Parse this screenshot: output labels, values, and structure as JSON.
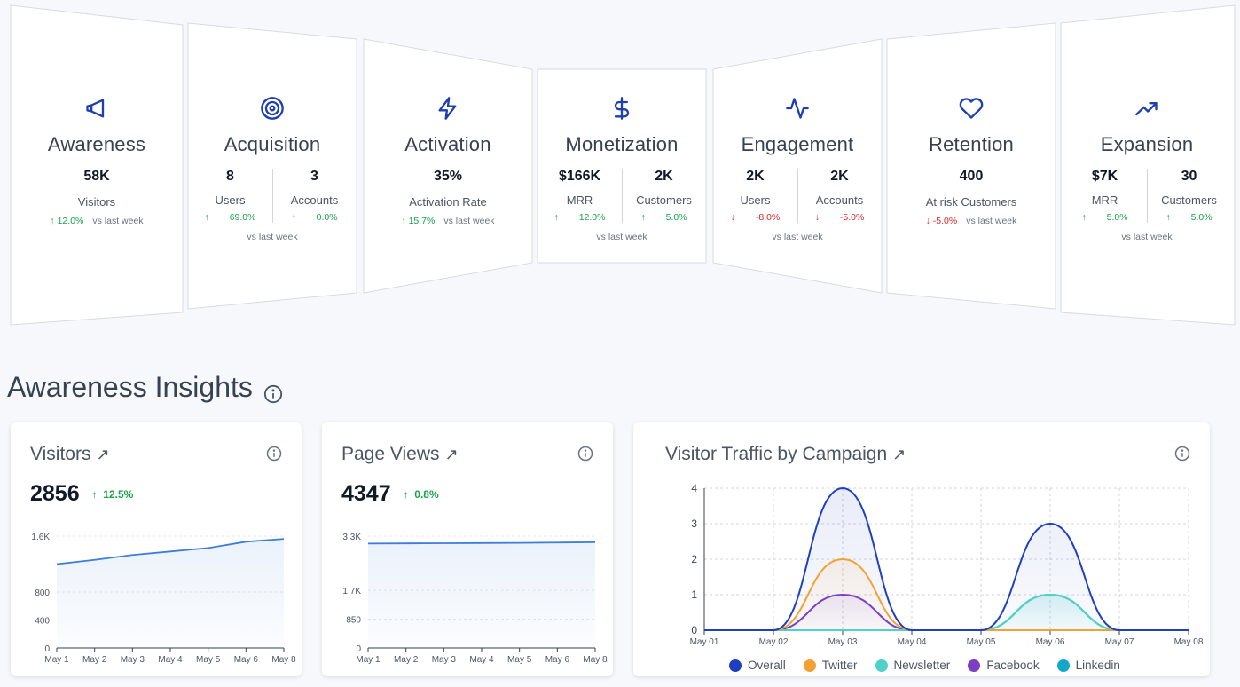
{
  "funnel": {
    "stages": [
      {
        "id": "awareness",
        "title": "Awareness",
        "icon": "megaphone-icon",
        "metrics": [
          {
            "value": "58K",
            "label": "Visitors",
            "change": "12.0%",
            "dir": "up"
          }
        ],
        "vs": "vs last week"
      },
      {
        "id": "acquisition",
        "title": "Acquisition",
        "icon": "target-icon",
        "metrics": [
          {
            "value": "8",
            "label": "Users",
            "change": "69.0%",
            "dir": "up"
          },
          {
            "value": "3",
            "label": "Accounts",
            "change": "0.0%",
            "dir": "up"
          }
        ],
        "vs": "vs last week"
      },
      {
        "id": "activation",
        "title": "Activation",
        "icon": "bolt-icon",
        "metrics": [
          {
            "value": "35%",
            "label": "Activation Rate",
            "change": "15.7%",
            "dir": "up"
          }
        ],
        "vs": "vs last week"
      },
      {
        "id": "monetization",
        "title": "Monetization",
        "icon": "dollar-icon",
        "metrics": [
          {
            "value": "$166K",
            "label": "MRR",
            "change": "12.0%",
            "dir": "up"
          },
          {
            "value": "2K",
            "label": "Customers",
            "change": "5.0%",
            "dir": "up"
          }
        ],
        "vs": "vs last week"
      },
      {
        "id": "engagement",
        "title": "Engagement",
        "icon": "pulse-icon",
        "metrics": [
          {
            "value": "2K",
            "label": "Users",
            "change": "-8.0%",
            "dir": "down"
          },
          {
            "value": "2K",
            "label": "Accounts",
            "change": "-5.0%",
            "dir": "down"
          }
        ],
        "vs": "vs last week"
      },
      {
        "id": "retention",
        "title": "Retention",
        "icon": "heart-icon",
        "metrics": [
          {
            "value": "400",
            "label": "At risk Customers",
            "change": "-5.0%",
            "dir": "down"
          }
        ],
        "vs": "vs last week"
      },
      {
        "id": "expansion",
        "title": "Expansion",
        "icon": "trending-up-icon",
        "metrics": [
          {
            "value": "$7K",
            "label": "MRR",
            "change": "5.0%",
            "dir": "up"
          },
          {
            "value": "30",
            "label": "Customers",
            "change": "5.0%",
            "dir": "up"
          }
        ],
        "vs": "vs last week"
      }
    ]
  },
  "insights": {
    "title": "Awareness Insights",
    "cards": {
      "visitors": {
        "title": "Visitors",
        "value": "2856",
        "delta": "12.5%"
      },
      "pageviews": {
        "title": "Page Views",
        "value": "4347",
        "delta": "0.8%"
      },
      "campaign": {
        "title": "Visitor Traffic by Campaign"
      }
    }
  },
  "colors": {
    "accent": "#1e3fae",
    "positive": "#16a34a",
    "negative": "#dc2626",
    "line": "#3b7dd8"
  },
  "chart_data": [
    {
      "type": "area",
      "title": "Visitors",
      "categories": [
        "May 1",
        "May 2",
        "May 3",
        "May 4",
        "May 5",
        "May 6",
        "May 8"
      ],
      "yticks": [
        "0",
        "400",
        "800",
        "1.6K"
      ],
      "series": [
        {
          "values": [
            1200,
            1260,
            1330,
            1380,
            1430,
            1520,
            1560
          ]
        }
      ]
    },
    {
      "type": "area",
      "title": "Page Views",
      "categories": [
        "May 1",
        "May 2",
        "May 3",
        "May 4",
        "May 5",
        "May 6",
        "May 8"
      ],
      "yticks": [
        "0",
        "850",
        "1.7K",
        "3.3K"
      ],
      "series": [
        {
          "values": [
            3080,
            3085,
            3090,
            3095,
            3100,
            3110,
            3120
          ]
        }
      ]
    },
    {
      "type": "area",
      "title": "Visitor Traffic by Campaign",
      "categories": [
        "May 01",
        "May 02",
        "May 03",
        "May 04",
        "May 05",
        "May 06",
        "May 07",
        "May 08"
      ],
      "ylim": [
        0,
        4
      ],
      "yticks": [
        "0",
        "1",
        "2",
        "3",
        "4"
      ],
      "series": [
        {
          "name": "Overall",
          "color": "#1f3fbf",
          "values": [
            0,
            0,
            4,
            0,
            0,
            3,
            0,
            0
          ]
        },
        {
          "name": "Twitter",
          "color": "#f5a033",
          "values": [
            0,
            0,
            2,
            0,
            0,
            0,
            0,
            0
          ]
        },
        {
          "name": "Newsletter",
          "color": "#4fd1c5",
          "values": [
            0,
            0,
            0,
            0,
            0,
            1,
            0,
            0
          ]
        },
        {
          "name": "Facebook",
          "color": "#7b3fc4",
          "values": [
            0,
            0,
            1,
            0,
            0,
            0,
            0,
            0
          ]
        },
        {
          "name": "Linkedin",
          "color": "#14a8c8",
          "values": [
            0,
            0,
            0,
            0,
            0,
            1,
            0,
            0
          ]
        }
      ]
    }
  ]
}
